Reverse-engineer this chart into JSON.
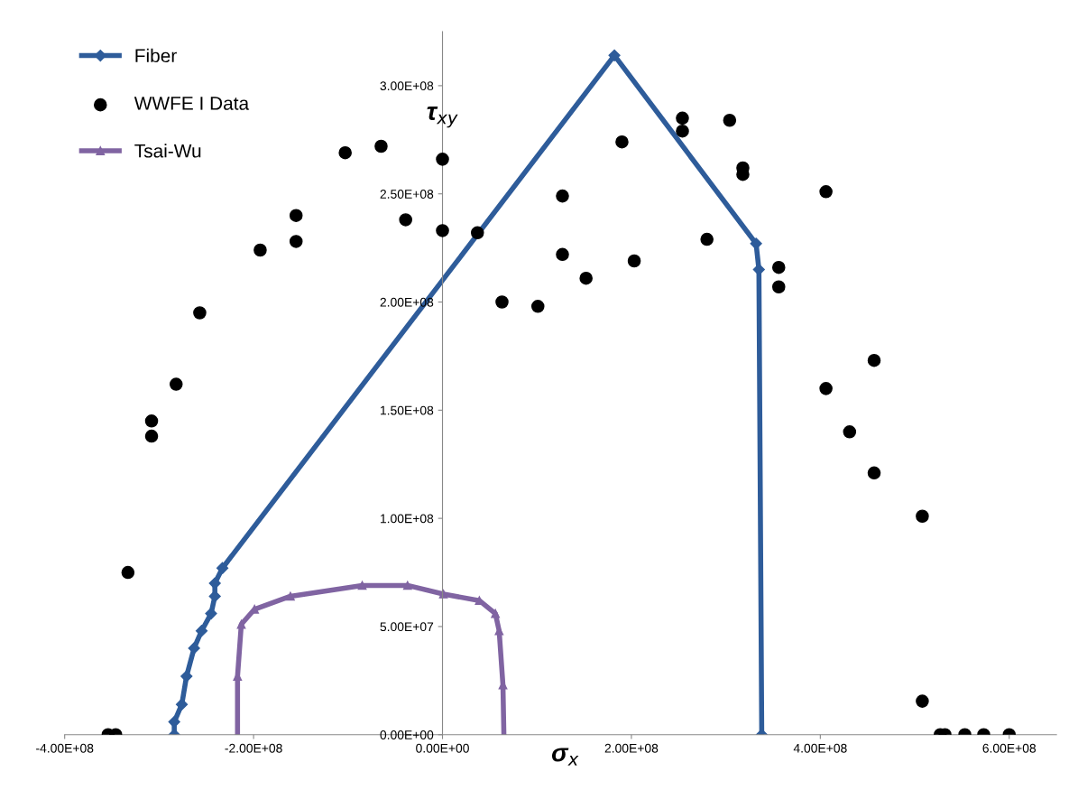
{
  "chart_data": {
    "type": "line",
    "xlabel": "σ$_{x}$",
    "ylabel": "τ$_{xy}$",
    "xlim": [
      -400000000,
      650000000
    ],
    "ylim": [
      0,
      325000000
    ],
    "xticks": [
      {
        "value": -400000000,
        "label": "-4.00E+08"
      },
      {
        "value": -200000000,
        "label": "-2.00E+08"
      },
      {
        "value": 0,
        "label": "0.00E+00"
      },
      {
        "value": 200000000,
        "label": "2.00E+08"
      },
      {
        "value": 400000000,
        "label": "4.00E+08"
      },
      {
        "value": 600000000,
        "label": "6.00E+08"
      }
    ],
    "yticks": [
      {
        "value": 0,
        "label": "0.00E+00"
      },
      {
        "value": 50000000,
        "label": "5.00E+07"
      },
      {
        "value": 100000000,
        "label": "1.00E+08"
      },
      {
        "value": 150000000,
        "label": "1.50E+08"
      },
      {
        "value": 200000000,
        "label": "2.00E+08"
      },
      {
        "value": 250000000,
        "label": "2.50E+08"
      },
      {
        "value": 300000000,
        "label": "3.00E+08"
      }
    ],
    "grid": false,
    "legend": "top left",
    "series": [
      {
        "name": "Fiber",
        "marker": "diamond",
        "color": "#2e5c9a",
        "x": [
          -284000000,
          -284000000,
          -276000000,
          -271000000,
          -263000000,
          -255000000,
          -245000000,
          -241000000,
          -241000000,
          -233000000,
          182000000,
          332000000,
          335000000,
          338000000
        ],
        "values": [
          0,
          5900000,
          14000000,
          27000000,
          40000000,
          48000000,
          56000000,
          64000000,
          70000000,
          77000000,
          314000000,
          227000000,
          215000000,
          0
        ]
      },
      {
        "name": "WWFE I Data",
        "type": "scatter",
        "marker": "circle",
        "color": "#000000",
        "x": [
          -354000000,
          -346000000,
          -333000000,
          -308000000,
          -308000000,
          -282000000,
          -257000000,
          -193000000,
          -155000000,
          -155000000,
          -103000000,
          -65000000,
          -39000000,
          0,
          0,
          37000000,
          63000000,
          101000000,
          127000000,
          127000000,
          152000000,
          190000000,
          203000000,
          254000000,
          254000000,
          280000000,
          304000000,
          318000000,
          318000000,
          356000000,
          356000000,
          406000000,
          406000000,
          431000000,
          457000000,
          457000000,
          508000000,
          508000000,
          527000000,
          532000000,
          553000000,
          573000000,
          600000000
        ],
        "values": [
          0,
          0,
          75000000,
          145000000,
          138000000,
          162000000,
          195000000,
          224000000,
          240000000,
          228000000,
          269000000,
          272000000,
          238000000,
          266000000,
          233000000,
          232000000,
          200000000,
          198000000,
          249000000,
          222000000,
          211000000,
          274000000,
          219000000,
          285000000,
          279000000,
          229000000,
          284000000,
          262000000,
          259000000,
          216000000,
          207000000,
          251000000,
          160000000,
          140000000,
          173000000,
          121000000,
          101000000,
          15500000,
          0,
          0,
          0,
          0,
          0
        ]
      },
      {
        "name": "Tsai-Wu",
        "marker": "triangle",
        "color": "#8064a2",
        "x": [
          -217000000,
          -217000000,
          -213000000,
          -199000000,
          -161000000,
          -85000000,
          -37000000,
          1000000,
          39000000,
          56000000,
          60000000,
          64000000,
          65000000
        ],
        "values": [
          0,
          27000000,
          51000000,
          58000000,
          64000000,
          69000000,
          69000000,
          65000000,
          62000000,
          56000000,
          48000000,
          23000000,
          0
        ]
      }
    ]
  }
}
